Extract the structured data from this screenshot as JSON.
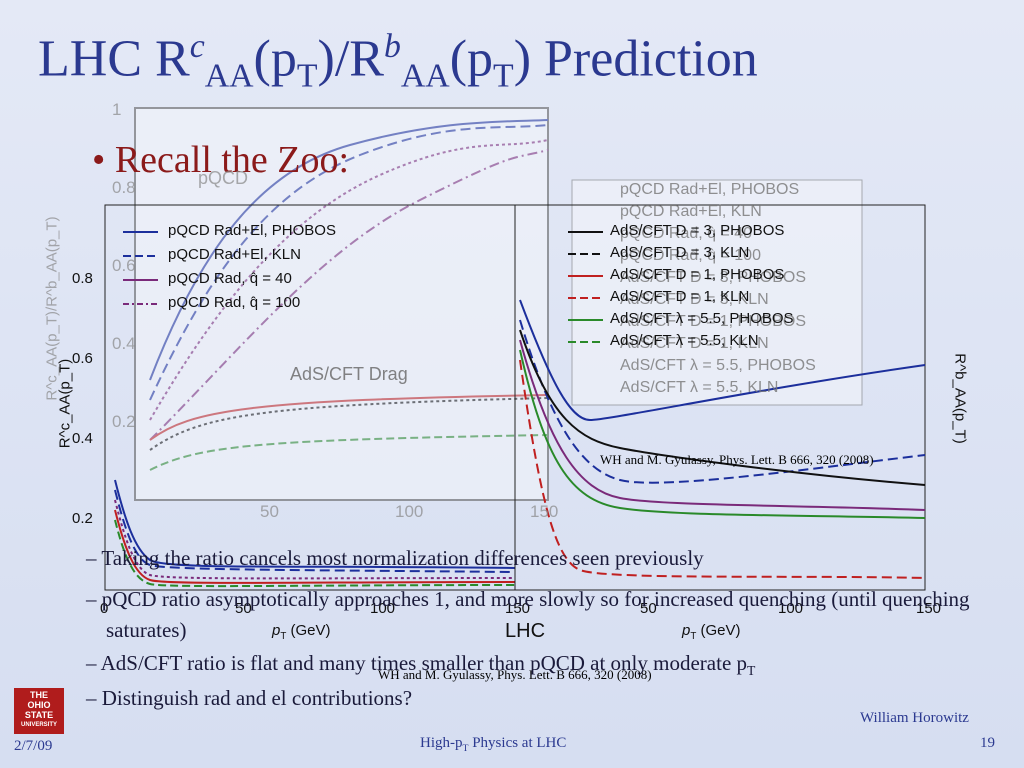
{
  "title": {
    "parts": [
      "LHC R",
      "c",
      "AA",
      "(p",
      "T",
      ")/R",
      "b",
      "AA",
      "(p",
      "T",
      ") Prediction"
    ]
  },
  "bullet": "Recall the Zoo:",
  "back_plot": {
    "yticks": [
      "1",
      "0.8",
      "0.6",
      "0.4",
      "0.2"
    ],
    "xticks": [
      "50",
      "100",
      "150"
    ],
    "xlabel": [
      "p",
      "T",
      " (GeV)"
    ],
    "ylabel": "R^c_AA(p_T)/R^b_AA(p_T)",
    "label_pqcd": "pQCD",
    "label_ads": "AdS/CFT Drag",
    "legend": [
      "pQCD Rad+El, PHOBOS",
      "pQCD Rad+El, KLN",
      "pQCD Rad, q̂ = 40",
      "pQCD Rad, q̂ = 100",
      "AdS/CFT D = 3, PHOBOS",
      "AdS/CFT D = 3, KLN",
      "AdS/CFT D = 1, PHOBOS",
      "AdS/CFT D = 1, KLN",
      "AdS/CFT λ = 5.5, PHOBOS",
      "AdS/CFT λ = 5.5, KLN"
    ]
  },
  "left_plot": {
    "yticks": [
      "0.8",
      "0.6",
      "0.4",
      "0.2"
    ],
    "xticks": [
      "0",
      "50",
      "100",
      "150"
    ],
    "xlabel": [
      "p",
      "T",
      " (GeV)"
    ],
    "ylabel": "R^c_AA(p_T)",
    "legend": [
      "pQCD Rad+El, PHOBOS",
      "pQCD Rad+El, KLN",
      "pQCD Rad, q̂ = 40",
      "pQCD Rad, q̂ = 100"
    ]
  },
  "right_plot": {
    "xticks": [
      "50",
      "100",
      "150"
    ],
    "xlabel": [
      "p",
      "T",
      " (GeV)"
    ],
    "ylabel": "R^b_AA(p_T)",
    "tag": "LHC",
    "legend": [
      "AdS/CFT D = 3, PHOBOS",
      "AdS/CFT D = 3, KLN",
      "AdS/CFT D = 1, PHOBOS",
      "AdS/CFT D = 1, KLN",
      "AdS/CFT λ = 5.5, PHOBOS",
      "AdS/CFT λ = 5.5, KLN"
    ]
  },
  "citations": [
    "WH and M. Gyulassy, Phys. Lett.  B 666, 320 (2008)",
    "WH and M. Gyulassy, Phys. Lett.  B 666, 320 (2008)"
  ],
  "subbullets": [
    "Taking the ratio cancels most normalization differences seen previously",
    "pQCD ratio asymptotically approaches 1, and more slowly so for increased quenching (until quenching saturates)",
    [
      "AdS/CFT ratio is flat and many times smaller than pQCD at only moderate p",
      "T"
    ],
    "Distinguish rad and el contributions?"
  ],
  "footer": {
    "logo": [
      "THE",
      "OHIO",
      "STATE",
      "UNIVERSITY"
    ],
    "date": "2/7/09",
    "talk": [
      "High-p",
      "T",
      " Physics at LHC"
    ],
    "author": "William Horowitz",
    "page": "19"
  }
}
